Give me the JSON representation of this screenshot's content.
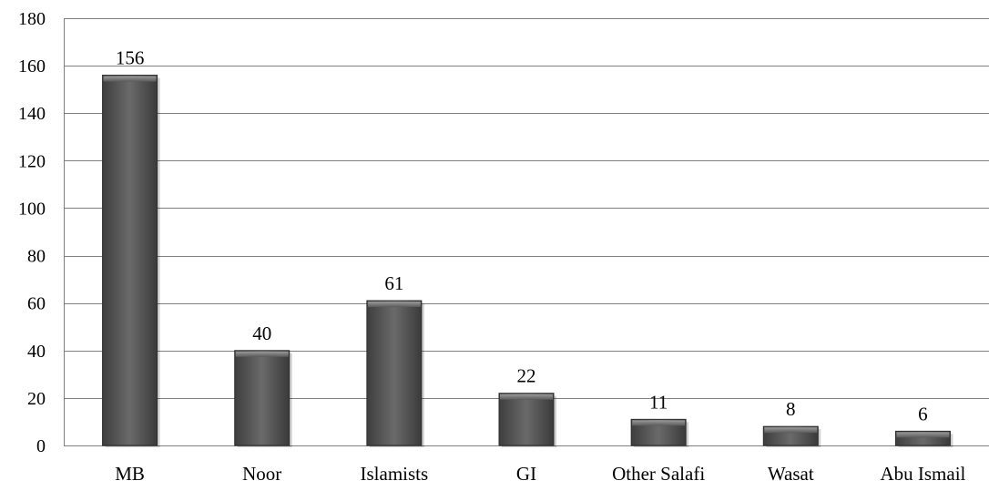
{
  "chart_data": {
    "type": "bar",
    "title": "",
    "xlabel": "",
    "ylabel": "",
    "categories": [
      "MB",
      "Noor",
      "Islamists",
      "GI",
      "Other Salafi",
      "Wasat",
      "Abu Ismail"
    ],
    "values": [
      156,
      40,
      61,
      22,
      11,
      8,
      6
    ],
    "data_labels": [
      "156",
      "40",
      "61",
      "22",
      "11",
      "8",
      "6"
    ],
    "ylim": [
      0,
      180
    ],
    "y_ticks": [
      0,
      20,
      40,
      60,
      80,
      100,
      120,
      140,
      160,
      180
    ],
    "grid": true,
    "legend": "none",
    "bar_color": "#555555"
  }
}
